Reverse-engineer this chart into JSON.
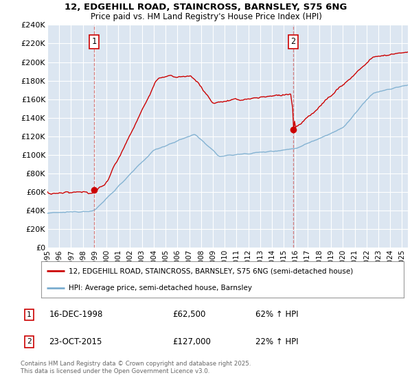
{
  "title_line1": "12, EDGEHILL ROAD, STAINCROSS, BARNSLEY, S75 6NG",
  "title_line2": "Price paid vs. HM Land Registry's House Price Index (HPI)",
  "ylim": [
    0,
    240000
  ],
  "yticks": [
    0,
    20000,
    40000,
    60000,
    80000,
    100000,
    120000,
    140000,
    160000,
    180000,
    200000,
    220000,
    240000
  ],
  "ytick_labels": [
    "£0",
    "£20K",
    "£40K",
    "£60K",
    "£80K",
    "£100K",
    "£120K",
    "£140K",
    "£160K",
    "£180K",
    "£200K",
    "£220K",
    "£240K"
  ],
  "sale1_year": 1998.958,
  "sale1_price": 62500,
  "sale1_label": "1",
  "sale2_year": 2015.806,
  "sale2_price": 127000,
  "sale2_label": "2",
  "legend_line1": "12, EDGEHILL ROAD, STAINCROSS, BARNSLEY, S75 6NG (semi-detached house)",
  "legend_line2": "HPI: Average price, semi-detached house, Barnsley",
  "footer": "Contains HM Land Registry data © Crown copyright and database right 2025.\nThis data is licensed under the Open Government Licence v3.0.",
  "red_color": "#cc0000",
  "blue_color": "#7aadcf",
  "bg_color": "#dce6f1",
  "grid_color": "#ffffff"
}
